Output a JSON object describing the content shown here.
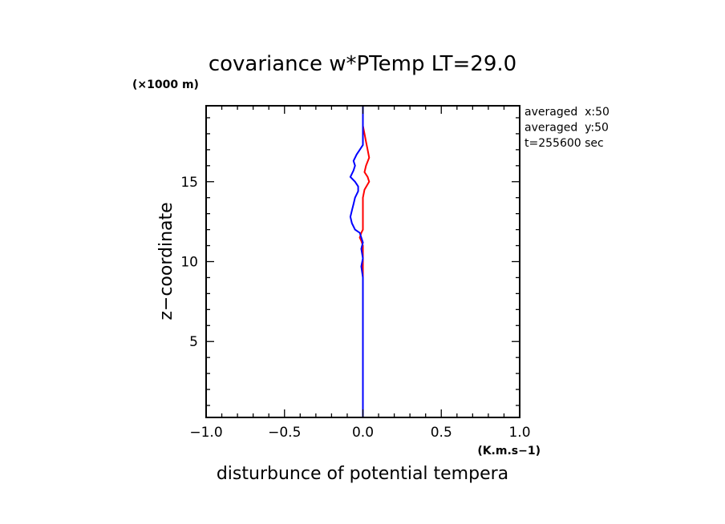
{
  "chart_data": {
    "type": "line",
    "title": "covariance w*PTemp LT=29.0",
    "xlabel": "disturbunce of potential tempera",
    "xunit": "(K.m.s−1)",
    "ylabel": "z−coordinate",
    "yunit": "(×1000 m)",
    "xlim": [
      -1.0,
      1.0
    ],
    "ylim": [
      0.25,
      19.75
    ],
    "xticks": [
      -1.0,
      -0.5,
      0.0,
      0.5,
      1.0
    ],
    "xtick_labels": [
      "−1.0",
      "−0.5",
      "0.0",
      "0.5",
      "1.0"
    ],
    "yticks": [
      5,
      10,
      15
    ],
    "ytick_labels": [
      "5",
      "10",
      "15"
    ],
    "annotations": [
      "averaged  x:50",
      "averaged  y:50",
      "t=255600 sec"
    ],
    "grid": false,
    "series": [
      {
        "color": "#ff0000",
        "points": [
          [
            0.0,
            0.25
          ],
          [
            0.0,
            3.0
          ],
          [
            0.0,
            6.0
          ],
          [
            0.0,
            9.0
          ],
          [
            0.0,
            9.6
          ],
          [
            0.0,
            10.4
          ],
          [
            0.0,
            11.0
          ],
          [
            -0.01,
            11.3
          ],
          [
            -0.02,
            11.5
          ],
          [
            -0.01,
            11.8
          ],
          [
            0.0,
            12.0
          ],
          [
            0.0,
            12.5
          ],
          [
            0.0,
            13.0
          ],
          [
            0.0,
            13.5
          ],
          [
            0.0,
            14.0
          ],
          [
            0.01,
            14.5
          ],
          [
            0.04,
            15.0
          ],
          [
            0.03,
            15.3
          ],
          [
            0.01,
            15.6
          ],
          [
            0.02,
            16.0
          ],
          [
            0.04,
            16.5
          ],
          [
            0.03,
            17.0
          ],
          [
            0.02,
            17.5
          ],
          [
            0.01,
            18.0
          ],
          [
            0.0,
            18.5
          ],
          [
            0.0,
            19.0
          ],
          [
            0.0,
            19.75
          ]
        ]
      },
      {
        "color": "#0000ff",
        "points": [
          [
            0.0,
            0.25
          ],
          [
            0.0,
            3.0
          ],
          [
            0.0,
            6.0
          ],
          [
            0.0,
            9.0
          ],
          [
            -0.01,
            9.7
          ],
          [
            0.0,
            10.2
          ],
          [
            -0.01,
            10.8
          ],
          [
            0.0,
            11.2
          ],
          [
            -0.02,
            11.8
          ],
          [
            -0.05,
            12.0
          ],
          [
            -0.07,
            12.4
          ],
          [
            -0.08,
            12.8
          ],
          [
            -0.07,
            13.2
          ],
          [
            -0.06,
            13.6
          ],
          [
            -0.05,
            14.0
          ],
          [
            -0.03,
            14.4
          ],
          [
            -0.03,
            14.7
          ],
          [
            -0.05,
            15.0
          ],
          [
            -0.08,
            15.3
          ],
          [
            -0.06,
            15.7
          ],
          [
            -0.05,
            16.0
          ],
          [
            -0.06,
            16.3
          ],
          [
            -0.04,
            16.7
          ],
          [
            -0.02,
            17.0
          ],
          [
            0.0,
            17.3
          ],
          [
            0.0,
            18.0
          ],
          [
            0.0,
            18.5
          ],
          [
            0.0,
            19.0
          ],
          [
            0.0,
            19.75
          ]
        ]
      }
    ]
  }
}
